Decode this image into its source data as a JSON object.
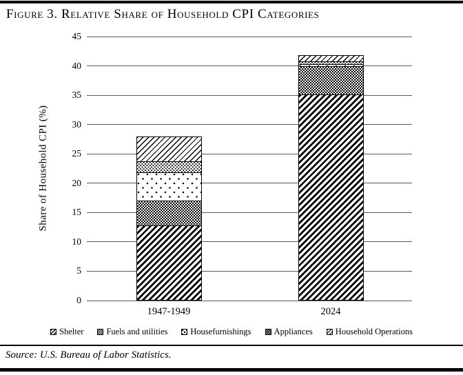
{
  "figure": {
    "title": "Figure 3. Relative Share of Household CPI Categories",
    "source": "Source: U.S. Bureau of Labor Statistics."
  },
  "chart_data": {
    "type": "bar",
    "stacked": true,
    "title": "Figure 3. Relative Share of Household CPI Categories",
    "categories": [
      "1947-1949",
      "2024"
    ],
    "series": [
      {
        "name": "Shelter",
        "pattern": "diag-heavy",
        "values": [
          12.8,
          35.2
        ]
      },
      {
        "name": "Fuels and utilities",
        "pattern": "checker",
        "values": [
          4.3,
          4.8
        ]
      },
      {
        "name": "Housefurnishings",
        "pattern": "dots-sparse",
        "values": [
          4.8,
          0.4
        ]
      },
      {
        "name": "Appliances",
        "pattern": "dots-dense",
        "values": [
          2.0,
          0.4
        ]
      },
      {
        "name": "Household Operations",
        "pattern": "diag-light",
        "values": [
          4.1,
          1.0
        ]
      }
    ],
    "bar_totals": [
      28.0,
      41.8
    ],
    "xlabel": "",
    "ylabel": "Share of Household CPI (%)",
    "ylim": [
      0,
      45
    ],
    "ytick_step": 5,
    "grid": true,
    "gridline_color": "#595959",
    "bar_fill_color": "#000000",
    "background_color": "#ffffff",
    "legend_position": "bottom"
  }
}
